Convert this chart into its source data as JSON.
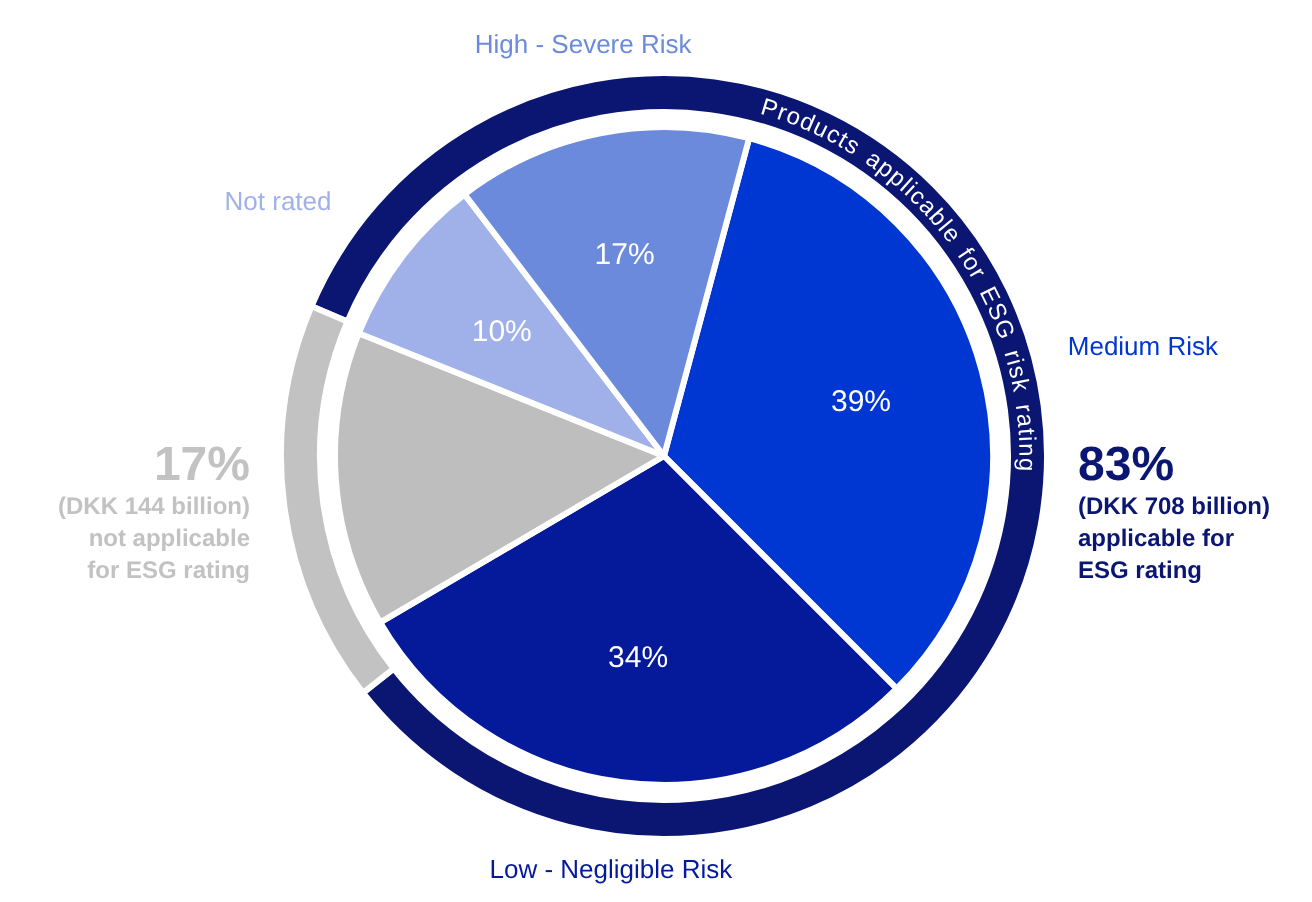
{
  "chart_data": [
    {
      "type": "donut",
      "categories": [
        null,
        null
      ],
      "values": [
        83,
        17
      ],
      "colors": [
        "#0a1672",
        "#c2c2c2"
      ],
      "value_labels": [
        "83%",
        "17%"
      ],
      "annotations": [
        "(DKK 708 billion) applicable for ESG rating",
        "(DKK 144 billion) not applicable for ESG rating",
        "Products applicable for ESG risk rating"
      ]
    },
    {
      "type": "pie",
      "categories": [
        "Medium Risk",
        "Low - Negligible Risk",
        null,
        "Not rated",
        "High - Severe Risk"
      ],
      "values": [
        39,
        34,
        17,
        10,
        17
      ],
      "colors": [
        "#0036d1",
        "#041a9b",
        "#bebebe",
        "#9fb1e8",
        "#6b8adb"
      ],
      "value_labels": [
        "39%",
        "34%",
        null,
        "10%",
        "17%"
      ]
    }
  ]
}
